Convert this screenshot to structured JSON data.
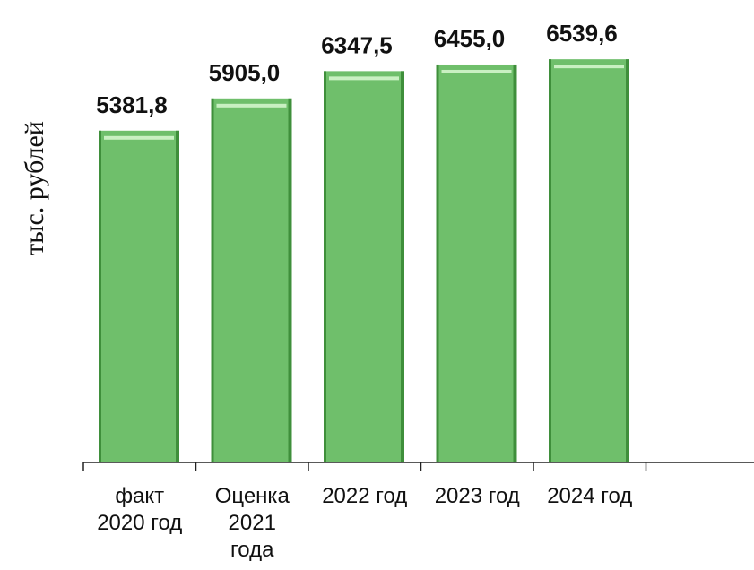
{
  "chart_data": {
    "type": "bar",
    "categories": [
      [
        "факт",
        "2020 год"
      ],
      [
        "Оценка",
        "2021",
        "года"
      ],
      [
        "2022 год"
      ],
      [
        "2023 год"
      ],
      [
        "2024 год"
      ]
    ],
    "values": [
      5381.8,
      5905.0,
      6347.5,
      6455.0,
      6539.6
    ],
    "value_labels": [
      "5381,8",
      "5905,0",
      "6347,5",
      "6455,0",
      "6539,6"
    ],
    "ylabel": "тыс. рублей",
    "ylim": [
      0,
      6600
    ],
    "grid": false,
    "bar_color": "#6fbf6b",
    "bar_edge_color": "#3f8f3b"
  }
}
